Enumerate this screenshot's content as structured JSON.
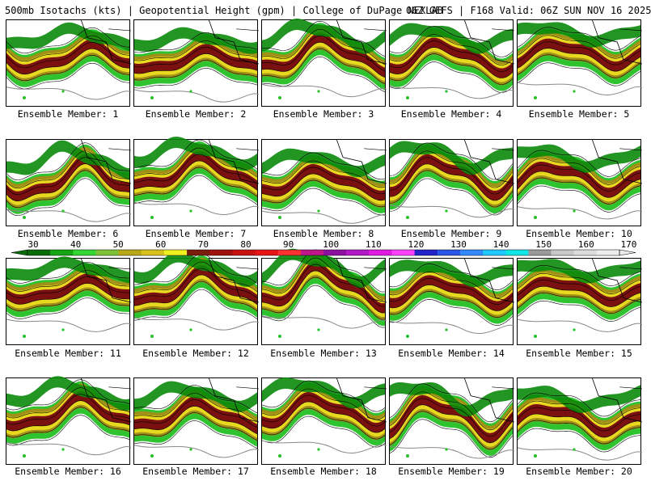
{
  "header": {
    "left": "500mb Isotachs (kts) | Geopotential Height (gpm) | College of DuPage NEXLAB",
    "right": "06Z GEFS | F168 Valid: 06Z SUN NOV 16 2025"
  },
  "panels": [
    {
      "label": "Ensemble Member: 1",
      "jet_lat": 0.45,
      "jet_amp": 0.12,
      "phase": 0.0
    },
    {
      "label": "Ensemble Member: 2",
      "jet_lat": 0.48,
      "jet_amp": 0.1,
      "phase": 0.6
    },
    {
      "label": "Ensemble Member: 3",
      "jet_lat": 0.42,
      "jet_amp": 0.16,
      "phase": 1.2
    },
    {
      "label": "Ensemble Member: 4",
      "jet_lat": 0.44,
      "jet_amp": 0.14,
      "phase": 1.8
    },
    {
      "label": "Ensemble Member: 5",
      "jet_lat": 0.4,
      "jet_amp": 0.11,
      "phase": 2.4
    },
    {
      "label": "Ensemble Member: 6",
      "jet_lat": 0.48,
      "jet_amp": 0.18,
      "phase": 0.3
    },
    {
      "label": "Ensemble Member: 7",
      "jet_lat": 0.4,
      "jet_amp": 0.15,
      "phase": 0.9
    },
    {
      "label": "Ensemble Member: 8",
      "jet_lat": 0.5,
      "jet_amp": 0.12,
      "phase": 1.5
    },
    {
      "label": "Ensemble Member: 9",
      "jet_lat": 0.43,
      "jet_amp": 0.17,
      "phase": 2.1
    },
    {
      "label": "Ensemble Member: 10",
      "jet_lat": 0.45,
      "jet_amp": 0.13,
      "phase": 2.7
    },
    {
      "label": "Ensemble Member: 11",
      "jet_lat": 0.38,
      "jet_amp": 0.1,
      "phase": 0.2
    },
    {
      "label": "Ensemble Member: 12",
      "jet_lat": 0.36,
      "jet_amp": 0.16,
      "phase": 0.8
    },
    {
      "label": "Ensemble Member: 13",
      "jet_lat": 0.34,
      "jet_amp": 0.19,
      "phase": 1.4
    },
    {
      "label": "Ensemble Member: 14",
      "jet_lat": 0.4,
      "jet_amp": 0.12,
      "phase": 2.0
    },
    {
      "label": "Ensemble Member: 15",
      "jet_lat": 0.38,
      "jet_amp": 0.1,
      "phase": 2.6
    },
    {
      "label": "Ensemble Member: 16",
      "jet_lat": 0.42,
      "jet_amp": 0.15,
      "phase": 0.5
    },
    {
      "label": "Ensemble Member: 17",
      "jet_lat": 0.45,
      "jet_amp": 0.13,
      "phase": 1.1
    },
    {
      "label": "Ensemble Member: 18",
      "jet_lat": 0.4,
      "jet_amp": 0.14,
      "phase": 1.7
    },
    {
      "label": "Ensemble Member: 19",
      "jet_lat": 0.46,
      "jet_amp": 0.18,
      "phase": 2.3
    },
    {
      "label": "Ensemble Member: 20",
      "jet_lat": 0.48,
      "jet_amp": 0.12,
      "phase": 2.9
    }
  ],
  "colorbar": {
    "ticks": [
      "30",
      "40",
      "50",
      "60",
      "70",
      "80",
      "90",
      "100",
      "110",
      "120",
      "130",
      "140",
      "150",
      "160",
      "170"
    ],
    "colors": [
      "#0a6b0a",
      "#15a515",
      "#33d633",
      "#7ec23a",
      "#b8a817",
      "#d7c21a",
      "#f0f020",
      "#7a1d0e",
      "#a01010",
      "#c81212",
      "#e61414",
      "#ff3030",
      "#c0168a",
      "#8c0fa0",
      "#b318c8",
      "#e01ae0",
      "#ff40ff",
      "#2222c8",
      "#2a55e6",
      "#3388ff",
      "#1ec8ff",
      "#10e6e6",
      "#9a9a9a",
      "#c8c8c8",
      "#dcdcdc",
      "#ececec"
    ]
  },
  "legend_colors": {
    "green_low": "#0a8a0a",
    "green_mid": "#25c025",
    "yellow": "#e8d820",
    "olive": "#a09018",
    "darkred": "#7a1010",
    "height_contour": "#000000",
    "land_outline": "#888888"
  }
}
